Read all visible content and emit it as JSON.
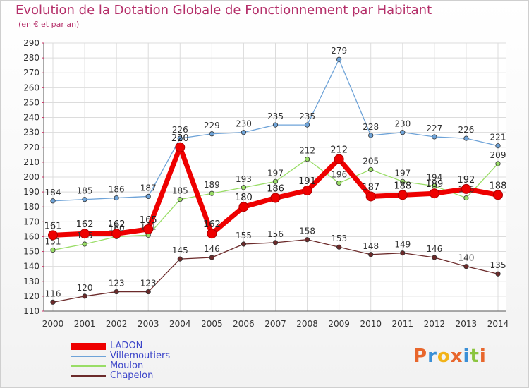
{
  "header": {
    "title": "Evolution de la Dotation Globale de Fonctionnement par Habitant",
    "subtitle": "(en € et par an)"
  },
  "logo": {
    "text": "Proxiti",
    "colors": [
      "#e8662c",
      "#3a8fd6",
      "#f2b318",
      "#e8662c",
      "#3a8fd6",
      "#8bc53f",
      "#e8662c"
    ]
  },
  "chart_data": {
    "type": "line",
    "x": [
      2000,
      2001,
      2002,
      2003,
      2004,
      2005,
      2006,
      2007,
      2008,
      2009,
      2010,
      2011,
      2012,
      2013,
      2014
    ],
    "ylim": [
      110,
      290
    ],
    "yticks": [
      110,
      120,
      130,
      140,
      150,
      160,
      170,
      180,
      190,
      200,
      210,
      220,
      230,
      240,
      250,
      260,
      270,
      280,
      290
    ],
    "grid": true,
    "legend_position": "bottom-left",
    "series": [
      {
        "name": "LADON",
        "color": "#ee0000",
        "values": [
          161,
          162,
          162,
          165,
          220,
          162,
          180,
          186,
          191,
          212,
          187,
          188,
          189,
          192,
          188
        ]
      },
      {
        "name": "Villemoutiers",
        "color": "#6ea3d8",
        "values": [
          184,
          185,
          186,
          187,
          226,
          229,
          230,
          235,
          235,
          279,
          228,
          230,
          227,
          226,
          221
        ]
      },
      {
        "name": "Moulon",
        "color": "#99dd66",
        "values": [
          151,
          155,
          160,
          161,
          185,
          189,
          193,
          197,
          212,
          196,
          205,
          197,
          194,
          186,
          209
        ]
      },
      {
        "name": "Chapelon",
        "color": "#6b2a2a",
        "values": [
          116,
          120,
          123,
          123,
          145,
          146,
          155,
          156,
          158,
          153,
          148,
          149,
          146,
          140,
          135
        ]
      }
    ]
  }
}
